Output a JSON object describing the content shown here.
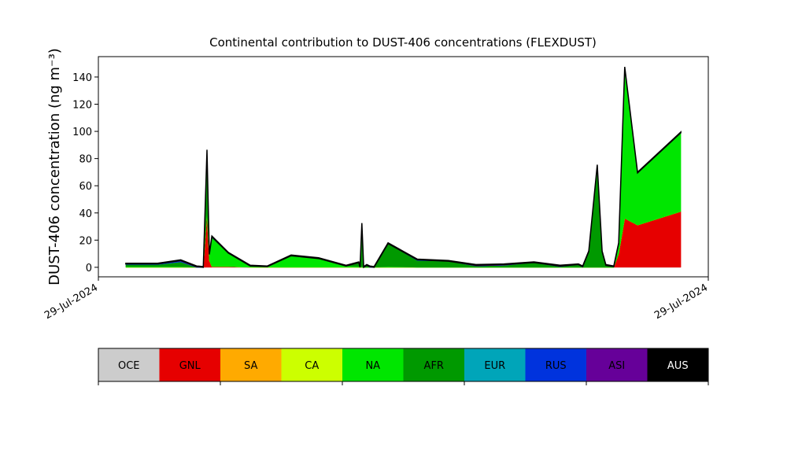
{
  "chart_data": {
    "type": "stacked-area",
    "title": "Continental contribution to DUST-406 concentrations (FLEXDUST)",
    "ylabel": "DUST-406 concentration (ng m⁻³)",
    "xlim": [
      0,
      100
    ],
    "xticks": [
      {
        "value": 0,
        "label": "29-Jul-2024"
      },
      {
        "value": 100,
        "label": "29-Jul-2024"
      }
    ],
    "ylim": [
      -7,
      155
    ],
    "yticks": [
      0,
      20,
      40,
      60,
      80,
      100,
      120,
      140
    ],
    "x": [
      4.5,
      9.7,
      13.5,
      16.1,
      17.2,
      17.8,
      18.2,
      18.6,
      21.3,
      24.9,
      27.7,
      31.6,
      36.1,
      40.6,
      42.7,
      42.9,
      43.2,
      43.5,
      44.0,
      44.5,
      45.2,
      47.5,
      52.3,
      57.4,
      61.9,
      66.5,
      71.4,
      75.7,
      78.7,
      79.4,
      80.4,
      81.8,
      82.6,
      83.2,
      84.5,
      85.3,
      86.3,
      88.4,
      95.5
    ],
    "series": [
      {
        "name": "OCE",
        "color": "#cccccc",
        "values": [
          0,
          0,
          0,
          0,
          0,
          0,
          0,
          0,
          0,
          0,
          0,
          0,
          0,
          0,
          0,
          0,
          0,
          0,
          0,
          0,
          0,
          0,
          0,
          0,
          0,
          0,
          0,
          0,
          0,
          0,
          0,
          0,
          0,
          0,
          0,
          0,
          0,
          0,
          0
        ]
      },
      {
        "name": "GNL",
        "color": "#e60000",
        "values": [
          0,
          0,
          0,
          0,
          0,
          40,
          5,
          0.5,
          0.5,
          0,
          0,
          0,
          0,
          0,
          0,
          0,
          0,
          0,
          0,
          0,
          0,
          0,
          0,
          0,
          0,
          0,
          0,
          0,
          0,
          0,
          0,
          0,
          0,
          0,
          0,
          10,
          36,
          31,
          41
        ]
      },
      {
        "name": "SA",
        "color": "#ffaa00",
        "values": [
          0,
          0,
          0,
          0,
          0,
          0,
          0,
          0,
          0,
          0,
          0,
          0,
          0,
          0,
          0,
          0,
          0,
          0,
          0,
          0,
          0,
          0,
          0,
          0,
          0,
          0,
          0,
          0,
          0,
          0,
          0,
          0,
          0,
          0,
          0,
          0,
          0,
          0,
          0
        ]
      },
      {
        "name": "CA",
        "color": "#ccff00",
        "values": [
          0,
          0,
          0,
          0,
          0,
          0,
          0,
          0,
          0,
          0,
          0,
          0,
          0,
          0,
          0,
          0,
          0,
          0,
          0,
          0,
          0,
          0,
          0,
          0,
          0,
          0,
          0,
          0,
          0,
          0,
          0,
          0,
          0,
          0,
          0,
          0,
          0,
          0,
          0
        ]
      },
      {
        "name": "NA",
        "color": "#00e600",
        "values": [
          0.5,
          0.5,
          0.5,
          0,
          0,
          2,
          4,
          21,
          10,
          1,
          0.5,
          8.5,
          6.5,
          1,
          0.5,
          0,
          0.5,
          0,
          0,
          0,
          0,
          0.5,
          0,
          0,
          0,
          0,
          0,
          0,
          0,
          0,
          0,
          0,
          0,
          0,
          0,
          7,
          110,
          38,
          58
        ]
      },
      {
        "name": "AFR",
        "color": "#009900",
        "values": [
          1.5,
          1.5,
          3.5,
          0,
          0,
          43,
          0.5,
          0.5,
          0,
          0,
          0,
          0,
          0,
          0,
          3,
          0,
          31,
          0,
          1.5,
          0,
          0,
          17,
          5,
          4.5,
          1,
          1.5,
          3.5,
          0.5,
          2,
          0,
          11.5,
          74,
          11.5,
          1.5,
          0.5,
          0.5,
          1,
          0.5,
          0
        ]
      },
      {
        "name": "EUR",
        "color": "#00a5b9",
        "values": [
          0,
          0,
          0,
          0,
          0,
          0,
          0,
          0,
          0,
          0,
          0,
          0,
          0,
          0,
          0,
          0,
          0,
          0,
          0,
          0,
          0,
          0,
          0,
          0,
          0,
          0,
          0,
          0,
          0,
          0,
          0,
          0,
          0,
          0,
          0,
          0,
          0,
          0,
          0
        ]
      },
      {
        "name": "RUS",
        "color": "#0033dd",
        "values": [
          0.5,
          0.5,
          0.5,
          0,
          0,
          0,
          0,
          0.5,
          0,
          0,
          0,
          0,
          0,
          0,
          0,
          0,
          0,
          0,
          0,
          0,
          0,
          0,
          0.5,
          0,
          0,
          0,
          0,
          0,
          0,
          0,
          0,
          0,
          0,
          0,
          0,
          0,
          0,
          0,
          0
        ]
      },
      {
        "name": "ASI",
        "color": "#660099",
        "values": [
          0,
          0,
          0.5,
          0.5,
          0,
          1,
          0,
          0,
          0,
          0,
          0,
          0,
          0,
          0,
          0,
          0,
          0.5,
          0,
          0,
          0.5,
          0,
          0,
          0,
          0,
          0.5,
          0.5,
          0,
          0.5,
          0,
          0.5,
          0,
          1,
          0,
          0,
          0,
          0,
          0,
          0,
          0
        ]
      },
      {
        "name": "AUS",
        "color": "#000000",
        "values": [
          0.5,
          0.5,
          0.5,
          0.5,
          0.5,
          0.5,
          0.5,
          0.5,
          0.5,
          0.5,
          0.5,
          0.5,
          0.5,
          0.5,
          0.5,
          0.5,
          0.5,
          0.5,
          0.5,
          0.5,
          0.5,
          0.5,
          0.5,
          0.5,
          0.5,
          0.5,
          0.5,
          0.5,
          0.5,
          0.5,
          0.5,
          0.5,
          0.5,
          0.5,
          0.5,
          0.5,
          0.5,
          0.5,
          0.5
        ]
      }
    ]
  }
}
